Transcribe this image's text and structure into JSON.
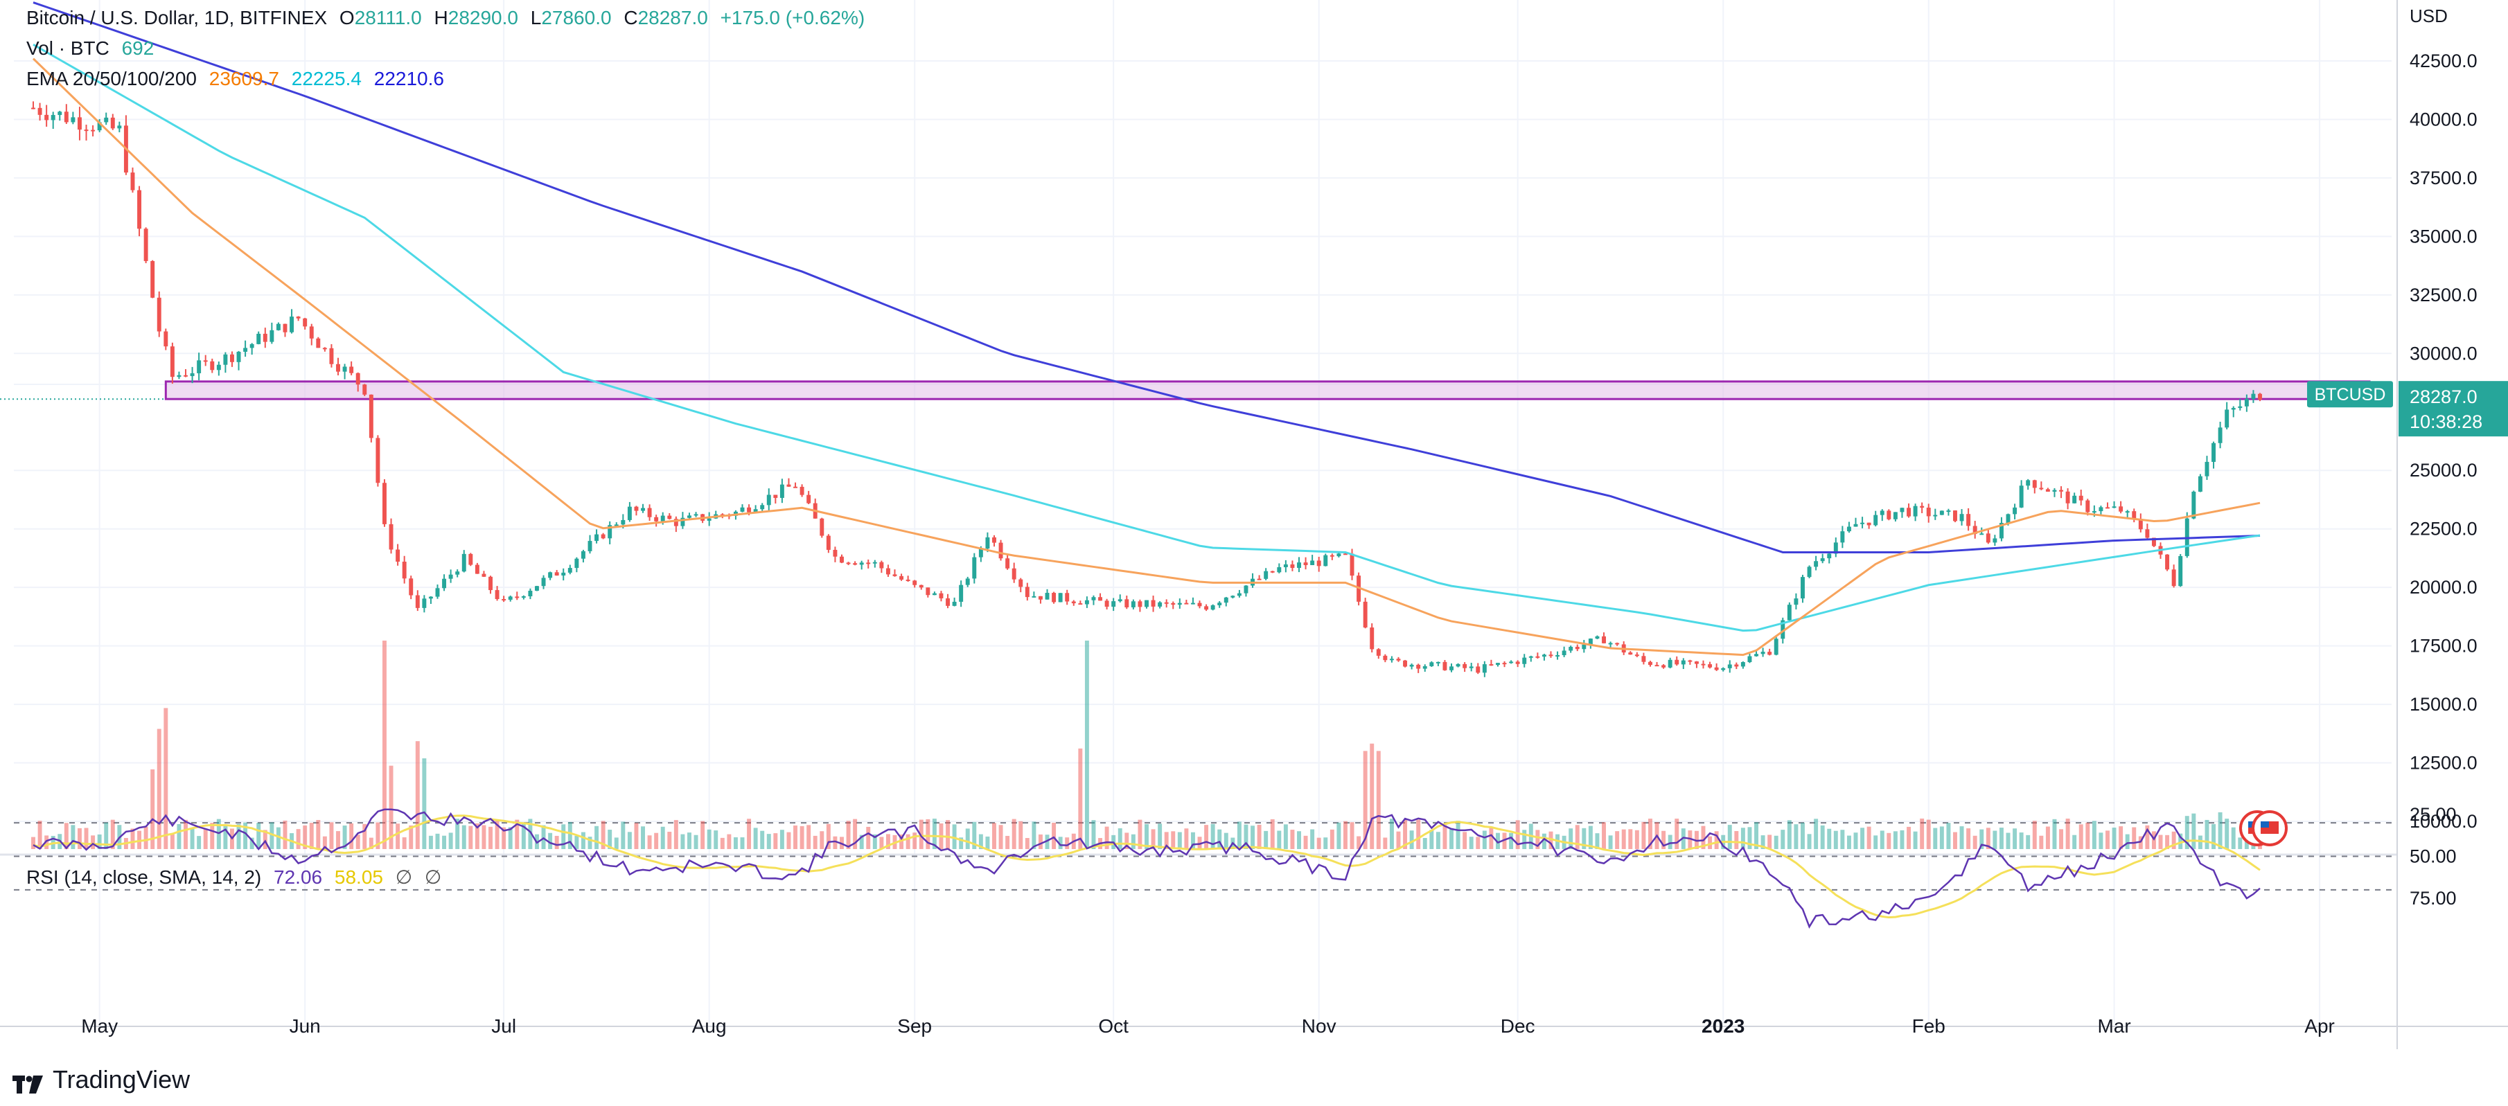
{
  "header": {
    "symbol_title": "Bitcoin / U.S. Dollar, 1D, BITFINEX",
    "ohlc": {
      "o_label": "O",
      "o_value": "28111.0",
      "h_label": "H",
      "h_value": "28290.0",
      "l_label": "L",
      "l_value": "27860.0",
      "c_label": "C",
      "c_value": "28287.0",
      "change": "+175.0 (+0.62%)"
    },
    "volume": {
      "label": "Vol · BTC",
      "value": "692"
    },
    "ema": {
      "label": "EMA 20/50/100/200",
      "v20": "23609.7",
      "v50": "22225.4",
      "v200": "22210.6"
    }
  },
  "rsi_legend": {
    "label": "RSI (14, close, SMA, 14, 2)",
    "rsi_value": "72.06",
    "sma_value": "58.05",
    "empty1": "∅",
    "empty2": "∅"
  },
  "price_axis": {
    "currency": "USD",
    "ticks": [
      "42500.0",
      "40000.0",
      "37500.0",
      "35000.0",
      "32500.0",
      "30000.0",
      "25000.0",
      "22500.0",
      "20000.0",
      "17500.0",
      "15000.0",
      "12500.0",
      "10000.0"
    ]
  },
  "price_badge": {
    "symbol": "BTCUSD",
    "price": "28287.0",
    "countdown": "10:38:28"
  },
  "rsi_axis": {
    "ticks": [
      "75.00",
      "50.00",
      "25.00"
    ]
  },
  "time_axis": {
    "labels": [
      "May",
      "Jun",
      "Jul",
      "Aug",
      "Sep",
      "Oct",
      "Nov",
      "Dec",
      "2023",
      "Feb",
      "Mar",
      "Apr"
    ]
  },
  "brand": "TradingView",
  "colors": {
    "up": "#26a69a",
    "down": "#ef5350",
    "ema20": "#f7a35c",
    "ema50": "#4dd9e6",
    "ema200": "#3f3fd9",
    "rsi": "#5e35b1",
    "rsi_sma": "#f5e05a",
    "zone": "#9c27b0"
  },
  "chart_data": {
    "type": "candlestick",
    "x_range": [
      "2022-04-21",
      "2023-03-23"
    ],
    "y_range": [
      9000,
      45000
    ],
    "price_anchors": [
      [
        "2022-04-21",
        40500
      ],
      [
        "2022-05-04",
        39500
      ],
      [
        "2022-05-10",
        31000
      ],
      [
        "2022-05-12",
        29000
      ],
      [
        "2022-05-20",
        29800
      ],
      [
        "2022-05-31",
        31500
      ],
      [
        "2022-06-05",
        29800
      ],
      [
        "2022-06-10",
        28500
      ],
      [
        "2022-06-13",
        22500
      ],
      [
        "2022-06-18",
        19000
      ],
      [
        "2022-06-25",
        21200
      ],
      [
        "2022-07-01",
        19300
      ],
      [
        "2022-07-10",
        20800
      ],
      [
        "2022-07-20",
        23300
      ],
      [
        "2022-07-27",
        22800
      ],
      [
        "2022-08-05",
        23200
      ],
      [
        "2022-08-14",
        24400
      ],
      [
        "2022-08-20",
        21300
      ],
      [
        "2022-08-26",
        21000
      ],
      [
        "2022-09-01",
        20000
      ],
      [
        "2022-09-07",
        19300
      ],
      [
        "2022-09-12",
        22300
      ],
      [
        "2022-09-18",
        19700
      ],
      [
        "2022-10-01",
        19300
      ],
      [
        "2022-10-15",
        19200
      ],
      [
        "2022-10-26",
        20800
      ],
      [
        "2022-11-05",
        21300
      ],
      [
        "2022-11-09",
        17500
      ],
      [
        "2022-11-12",
        16800
      ],
      [
        "2022-11-25",
        16500
      ],
      [
        "2022-12-05",
        17100
      ],
      [
        "2022-12-14",
        17800
      ],
      [
        "2022-12-20",
        16800
      ],
      [
        "2023-01-01",
        16600
      ],
      [
        "2023-01-08",
        17300
      ],
      [
        "2023-01-14",
        20900
      ],
      [
        "2023-01-21",
        22700
      ],
      [
        "2023-01-28",
        23300
      ],
      [
        "2023-02-06",
        23000
      ],
      [
        "2023-02-10",
        21800
      ],
      [
        "2023-02-16",
        24600
      ],
      [
        "2023-02-25",
        23400
      ],
      [
        "2023-03-02",
        23300
      ],
      [
        "2023-03-06",
        22300
      ],
      [
        "2023-03-10",
        20200
      ],
      [
        "2023-03-13",
        24300
      ],
      [
        "2023-03-18",
        27400
      ],
      [
        "2023-03-23",
        28287
      ]
    ],
    "ema20": [
      [
        "2022-04-21",
        42600
      ],
      [
        "2022-05-15",
        36000
      ],
      [
        "2022-06-01",
        32300
      ],
      [
        "2022-06-25",
        27000
      ],
      [
        "2022-07-15",
        22500
      ],
      [
        "2022-08-15",
        23400
      ],
      [
        "2022-09-15",
        21400
      ],
      [
        "2022-10-15",
        20200
      ],
      [
        "2022-11-05",
        20200
      ],
      [
        "2022-11-20",
        18600
      ],
      [
        "2022-12-15",
        17400
      ],
      [
        "2023-01-05",
        17100
      ],
      [
        "2023-01-25",
        21200
      ],
      [
        "2023-02-20",
        23300
      ],
      [
        "2023-03-08",
        22800
      ],
      [
        "2023-03-23",
        23609.7
      ]
    ],
    "ema50": [
      [
        "2022-04-21",
        43200
      ],
      [
        "2022-05-20",
        38500
      ],
      [
        "2022-06-10",
        35800
      ],
      [
        "2022-07-10",
        29200
      ],
      [
        "2022-08-05",
        27000
      ],
      [
        "2022-09-15",
        24000
      ],
      [
        "2022-10-15",
        21700
      ],
      [
        "2022-11-05",
        21500
      ],
      [
        "2022-11-20",
        20100
      ],
      [
        "2022-12-20",
        18900
      ],
      [
        "2023-01-05",
        18100
      ],
      [
        "2023-02-01",
        20100
      ],
      [
        "2023-03-08",
        21600
      ],
      [
        "2023-03-23",
        22225.4
      ]
    ],
    "ema200": [
      [
        "2022-04-21",
        45000
      ],
      [
        "2022-06-01",
        41000
      ],
      [
        "2022-07-15",
        36400
      ],
      [
        "2022-08-15",
        33500
      ],
      [
        "2022-09-15",
        30000
      ],
      [
        "2022-10-15",
        27800
      ],
      [
        "2022-11-15",
        25900
      ],
      [
        "2022-12-15",
        23900
      ],
      [
        "2023-01-10",
        21500
      ],
      [
        "2023-02-01",
        21500
      ],
      [
        "2023-03-01",
        22000
      ],
      [
        "2023-03-23",
        22210.6
      ]
    ],
    "zone": {
      "low": 28050,
      "high": 28800,
      "from": "2022-05-11"
    },
    "volume_spikes": [
      [
        "2022-05-09",
        6500
      ],
      [
        "2022-05-10",
        9800
      ],
      [
        "2022-05-11",
        11500
      ],
      [
        "2022-06-13",
        17000
      ],
      [
        "2022-06-14",
        6800
      ],
      [
        "2022-06-18",
        8800
      ],
      [
        "2022-06-19",
        7400
      ],
      [
        "2022-09-26",
        8200
      ],
      [
        "2022-09-27",
        17000
      ],
      [
        "2022-11-08",
        8000
      ],
      [
        "2022-11-09",
        8600
      ],
      [
        "2022-11-10",
        8000
      ],
      [
        "2023-03-12",
        2700
      ],
      [
        "2023-03-13",
        2900
      ],
      [
        "2023-03-17",
        3000
      ]
    ],
    "rsi": {
      "range": [
        20,
        95
      ],
      "overbought": 70,
      "middle": 50,
      "oversold": 30,
      "last": 72.06,
      "last_sma": 58.05,
      "anchors": [
        [
          "2022-04-21",
          42
        ],
        [
          "2022-05-01",
          44
        ],
        [
          "2022-05-10",
          28
        ],
        [
          "2022-05-20",
          35
        ],
        [
          "2022-05-31",
          52
        ],
        [
          "2022-06-08",
          40
        ],
        [
          "2022-06-13",
          22
        ],
        [
          "2022-06-20",
          27
        ],
        [
          "2022-07-01",
          32
        ],
        [
          "2022-07-10",
          43
        ],
        [
          "2022-07-20",
          58
        ],
        [
          "2022-08-01",
          55
        ],
        [
          "2022-08-14",
          62
        ],
        [
          "2022-08-20",
          42
        ],
        [
          "2022-09-01",
          35
        ],
        [
          "2022-09-12",
          60
        ],
        [
          "2022-09-20",
          40
        ],
        [
          "2022-10-05",
          47
        ],
        [
          "2022-10-20",
          44
        ],
        [
          "2022-11-05",
          62
        ],
        [
          "2022-11-09",
          27
        ],
        [
          "2022-11-20",
          33
        ],
        [
          "2022-12-05",
          43
        ],
        [
          "2022-12-14",
          55
        ],
        [
          "2022-12-22",
          40
        ],
        [
          "2023-01-01",
          40
        ],
        [
          "2023-01-10",
          65
        ],
        [
          "2023-01-14",
          90
        ],
        [
          "2023-01-25",
          84
        ],
        [
          "2023-02-01",
          78
        ],
        [
          "2023-02-10",
          42
        ],
        [
          "2023-02-16",
          68
        ],
        [
          "2023-02-25",
          56
        ],
        [
          "2023-03-10",
          30
        ],
        [
          "2023-03-15",
          60
        ],
        [
          "2023-03-20",
          71
        ],
        [
          "2023-03-23",
          72.06
        ]
      ]
    }
  }
}
